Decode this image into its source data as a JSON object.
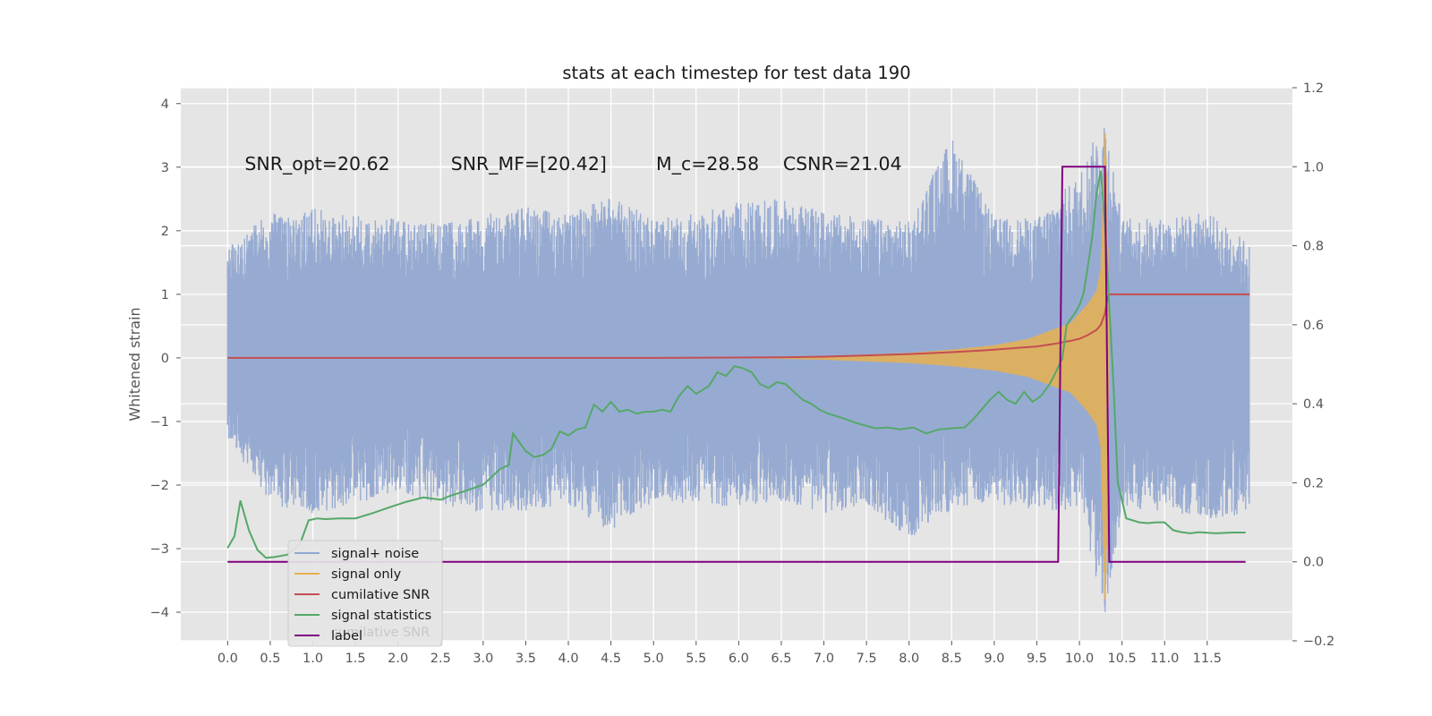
{
  "chart_data": {
    "type": "line",
    "title": "stats at each timestep for test data 190",
    "ylabel": "Whitened strain",
    "y2label": "",
    "xlim": [
      -0.55,
      12.5
    ],
    "ylim": [
      -4.45,
      4.25
    ],
    "y2lim": [
      -0.2,
      1.2
    ],
    "x_ticks": [
      "0.0",
      "0.5",
      "1.0",
      "1.5",
      "2.0",
      "2.5",
      "3.0",
      "3.5",
      "4.0",
      "4.5",
      "5.0",
      "5.5",
      "6.0",
      "6.5",
      "7.0",
      "7.5",
      "8.0",
      "8.5",
      "9.0",
      "9.5",
      "10.0",
      "10.5",
      "11.0",
      "11.5"
    ],
    "y_ticks": [
      "4",
      "3",
      "2",
      "1",
      "0",
      "−1",
      "−2",
      "−3",
      "−4"
    ],
    "y2_ticks": [
      "1.2",
      "1.0",
      "0.8",
      "0.6",
      "0.4",
      "0.2",
      "0.0",
      "−0.2"
    ],
    "grid": true,
    "background": "#e5e5e5",
    "legend_position": "lower-left",
    "annotations": [
      {
        "text": "SNR_opt=20.62",
        "x": 0.2,
        "y": 3.05
      },
      {
        "text": "SNR_MF=[20.42]",
        "x": 2.62,
        "y": 3.05
      },
      {
        "text": "M_c=28.58",
        "x": 5.03,
        "y": 3.05
      },
      {
        "text": "CSNR=21.04",
        "x": 6.52,
        "y": 3.05
      }
    ],
    "legend_ghost_text": "cumilative SNR",
    "series": [
      {
        "name": "signal+ noise",
        "axis": "left",
        "color": "#92a8d1",
        "envelope": {
          "x": [
            0.0,
            0.5,
            1.0,
            1.5,
            2.0,
            2.5,
            3.0,
            3.5,
            4.0,
            4.5,
            5.0,
            5.5,
            6.0,
            6.5,
            7.0,
            7.5,
            8.0,
            8.5,
            9.0,
            9.5,
            10.0,
            10.3,
            10.5,
            11.0,
            11.5,
            12.0
          ],
          "upper": [
            1.75,
            2.3,
            2.35,
            2.25,
            2.2,
            2.1,
            2.25,
            2.4,
            2.25,
            2.55,
            2.2,
            2.3,
            2.45,
            2.5,
            2.3,
            2.2,
            2.15,
            3.5,
            2.2,
            2.2,
            2.9,
            3.85,
            2.2,
            2.2,
            2.3,
            1.8
          ],
          "lower": [
            -1.25,
            -2.3,
            -2.45,
            -2.3,
            -2.1,
            -2.3,
            -2.45,
            -2.4,
            -2.3,
            -2.75,
            -2.25,
            -2.3,
            -2.35,
            -2.25,
            -2.45,
            -2.35,
            -2.85,
            -2.4,
            -2.3,
            -2.4,
            -2.4,
            -4.1,
            -2.4,
            -2.4,
            -2.55,
            -2.45
          ]
        }
      },
      {
        "name": "signal only",
        "axis": "left",
        "color": "#e6b050",
        "envelope": {
          "x": [
            6.0,
            7.0,
            8.0,
            8.5,
            9.0,
            9.4,
            9.7,
            9.9,
            10.0,
            10.1,
            10.2,
            10.25,
            10.3,
            10.33,
            10.35
          ],
          "upper": [
            0.0,
            0.03,
            0.08,
            0.13,
            0.2,
            0.3,
            0.45,
            0.55,
            0.7,
            0.85,
            1.05,
            1.4,
            3.7,
            2.5,
            0.0
          ],
          "lower": [
            0.0,
            -0.03,
            -0.08,
            -0.13,
            -0.2,
            -0.3,
            -0.45,
            -0.55,
            -0.7,
            -0.85,
            -1.05,
            -1.4,
            -4.0,
            -2.5,
            0.0
          ]
        }
      },
      {
        "name": "cumilative SNR",
        "axis": "left",
        "color": "#c44e52",
        "x": [
          0.0,
          5.0,
          6.5,
          7.0,
          7.5,
          8.0,
          8.5,
          8.9,
          9.2,
          9.5,
          9.7,
          9.9,
          10.0,
          10.1,
          10.2,
          10.25,
          10.3,
          10.33,
          10.35,
          10.4,
          12.0
        ],
        "y": [
          0.0,
          0.0,
          0.01,
          0.02,
          0.04,
          0.06,
          0.09,
          0.12,
          0.15,
          0.18,
          0.22,
          0.27,
          0.3,
          0.36,
          0.44,
          0.52,
          0.7,
          0.95,
          1.0,
          1.0,
          1.0
        ]
      },
      {
        "name": "signal statistics",
        "axis": "right",
        "color": "#55a868",
        "x": [
          0.0,
          0.08,
          0.15,
          0.25,
          0.35,
          0.45,
          0.55,
          0.7,
          0.85,
          0.95,
          1.05,
          1.15,
          1.3,
          1.5,
          1.7,
          1.9,
          2.1,
          2.3,
          2.5,
          2.6,
          2.8,
          3.0,
          3.1,
          3.2,
          3.3,
          3.35,
          3.5,
          3.6,
          3.7,
          3.8,
          3.9,
          4.0,
          4.1,
          4.2,
          4.3,
          4.4,
          4.5,
          4.6,
          4.7,
          4.8,
          4.9,
          5.0,
          5.1,
          5.2,
          5.3,
          5.4,
          5.5,
          5.65,
          5.75,
          5.85,
          5.95,
          6.05,
          6.15,
          6.25,
          6.35,
          6.45,
          6.55,
          6.65,
          6.75,
          6.85,
          6.95,
          7.05,
          7.2,
          7.4,
          7.6,
          7.75,
          7.9,
          8.05,
          8.2,
          8.35,
          8.5,
          8.65,
          8.75,
          8.85,
          8.95,
          9.05,
          9.15,
          9.25,
          9.35,
          9.45,
          9.55,
          9.65,
          9.7,
          9.8,
          9.85,
          9.95,
          10.0,
          10.05,
          10.1,
          10.15,
          10.2,
          10.25,
          10.3,
          10.4,
          10.45,
          10.55,
          10.7,
          10.8,
          10.9,
          11.0,
          11.1,
          11.2,
          11.3,
          11.4,
          11.6,
          11.8,
          11.95
        ],
        "y": [
          0.035,
          0.065,
          0.155,
          0.08,
          0.03,
          0.01,
          0.012,
          0.018,
          0.045,
          0.105,
          0.11,
          0.108,
          0.11,
          0.11,
          0.123,
          0.138,
          0.152,
          0.163,
          0.157,
          0.166,
          0.18,
          0.195,
          0.215,
          0.235,
          0.245,
          0.325,
          0.28,
          0.265,
          0.27,
          0.285,
          0.33,
          0.32,
          0.335,
          0.34,
          0.398,
          0.38,
          0.405,
          0.38,
          0.385,
          0.375,
          0.38,
          0.38,
          0.385,
          0.38,
          0.42,
          0.445,
          0.425,
          0.445,
          0.48,
          0.47,
          0.495,
          0.49,
          0.48,
          0.45,
          0.44,
          0.455,
          0.45,
          0.43,
          0.41,
          0.4,
          0.385,
          0.375,
          0.365,
          0.35,
          0.338,
          0.34,
          0.335,
          0.34,
          0.325,
          0.335,
          0.338,
          0.34,
          0.36,
          0.385,
          0.41,
          0.43,
          0.41,
          0.4,
          0.43,
          0.405,
          0.42,
          0.45,
          0.47,
          0.515,
          0.6,
          0.63,
          0.65,
          0.68,
          0.75,
          0.82,
          0.93,
          0.99,
          0.85,
          0.45,
          0.2,
          0.11,
          0.1,
          0.098,
          0.1,
          0.1,
          0.08,
          0.075,
          0.072,
          0.075,
          0.072,
          0.074,
          0.074
        ]
      },
      {
        "name": "label",
        "axis": "right",
        "color": "#800080",
        "x": [
          0.0,
          9.75,
          9.8,
          10.3,
          10.35,
          11.95
        ],
        "y": [
          0.0,
          0.0,
          1.0,
          1.0,
          0.0,
          0.0
        ]
      }
    ]
  }
}
